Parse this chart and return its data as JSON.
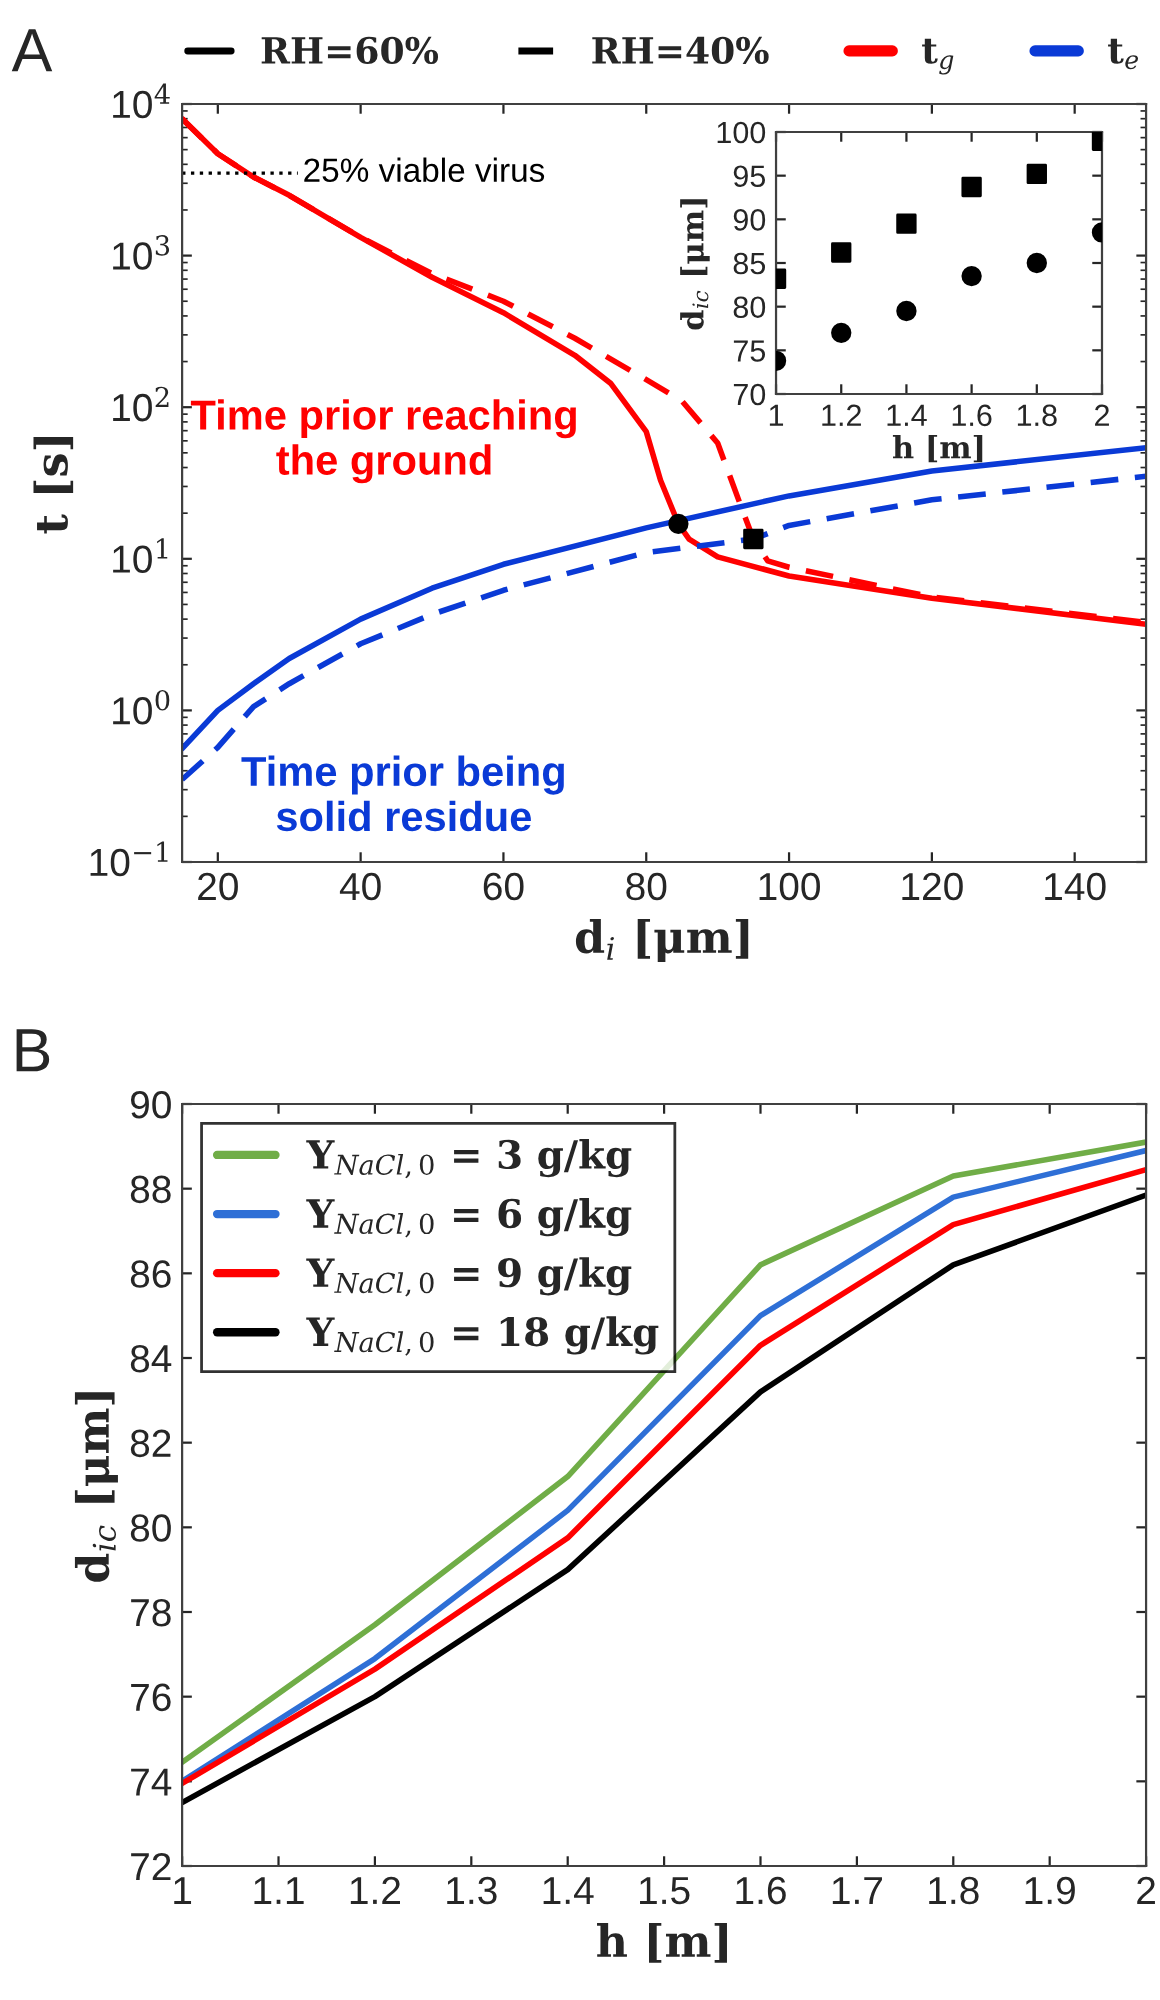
{
  "chart_data": [
    {
      "type": "line",
      "xlabel": "d$_{i}$ [μm]",
      "ylabel": "t [s]",
      "log": "y",
      "xlim": [
        15,
        150
      ],
      "xticks": [
        20,
        40,
        60,
        80,
        100,
        120,
        140
      ],
      "ylim": [
        0.1,
        10000
      ],
      "yticks": [
        {
          "value": 0.1,
          "label": "10$^{−1}$"
        },
        {
          "value": 1,
          "label": "10$^{0}$"
        },
        {
          "value": 10,
          "label": "10$^{1}$"
        },
        {
          "value": 100,
          "label": "10$^{2}$"
        },
        {
          "value": 1000,
          "label": "10$^{3}$"
        },
        {
          "value": 10000,
          "label": "10$^{4}$"
        }
      ],
      "legend": "top",
      "grid": false,
      "annotations": [
        "A",
        "RH=60%",
        "RH=40%",
        "Time prior reaching\nthe ground",
        "Time prior being\nsolid residue"
      ],
      "ref_lines": [
        {
          "axis": "y",
          "value": 3500,
          "label": "25% viable virus",
          "color": "#000000",
          "line_style": "dotted"
        }
      ],
      "series": [
        {
          "name": "t$_{g}$",
          "color": "#ff0000",
          "line_style": "solid",
          "x": [
            15,
            20,
            25,
            30,
            40,
            50,
            60,
            70,
            75,
            80,
            82,
            84.5,
            86,
            90,
            100,
            120,
            150
          ],
          "values": [
            8000,
            4700,
            3300,
            2500,
            1320,
            720,
            420,
            220,
            144,
            69,
            33,
            17,
            13.5,
            10.3,
            7.7,
            5.5,
            3.7
          ]
        },
        {
          "color": "#ff0000",
          "line_style": "dashed",
          "x": [
            15,
            20,
            25,
            30,
            40,
            50,
            60,
            70,
            80,
            85,
            90,
            93,
            95,
            97,
            100,
            120,
            150
          ],
          "values": [
            8000,
            4700,
            3300,
            2500,
            1320,
            760,
            500,
            285,
            152,
            110,
            58,
            24,
            13.5,
            9.7,
            8.8,
            5.6,
            3.8
          ]
        },
        {
          "name": "t$_{e}$",
          "color": "#0a3ad6",
          "line_style": "solid",
          "x": [
            15,
            20,
            25,
            30,
            40,
            50,
            60,
            80,
            100,
            120,
            150
          ],
          "values": [
            0.56,
            1.0,
            1.5,
            2.2,
            4.0,
            6.4,
            9.2,
            16,
            26,
            38,
            54
          ]
        },
        {
          "color": "#0a3ad6",
          "line_style": "dashed",
          "x": [
            15,
            20,
            25,
            30,
            40,
            50,
            60,
            80,
            95,
            100,
            120,
            150
          ],
          "values": [
            0.35,
            0.57,
            1.06,
            1.5,
            2.75,
            4.3,
            6.2,
            11,
            13.5,
            16.6,
            24.5,
            35
          ]
        },
        {
          "type": "scatter",
          "marker": "circle",
          "color": "#000000",
          "x": [
            84.5
          ],
          "values": [
            17
          ]
        },
        {
          "type": "scatter",
          "marker": "square",
          "color": "#000000",
          "x": [
            95
          ],
          "values": [
            13.5
          ]
        }
      ]
    },
    {
      "type": "scatter",
      "xlabel": "h [m]",
      "ylabel": "d$_{ic}$ [μm]",
      "xlim": [
        1,
        2
      ],
      "xticks": [
        1,
        1.2,
        1.4,
        1.6,
        1.8,
        2
      ],
      "ylim": [
        70,
        100
      ],
      "yticks": [
        70,
        75,
        80,
        85,
        90,
        95,
        100
      ],
      "grid": false,
      "series": [
        {
          "marker": "square",
          "color": "#000000",
          "x": [
            1,
            1.2,
            1.4,
            1.6,
            1.8,
            2
          ],
          "values": [
            83.2,
            86.2,
            89.5,
            93.7,
            95.2,
            99
          ]
        },
        {
          "marker": "circle",
          "color": "#000000",
          "x": [
            1,
            1.2,
            1.4,
            1.6,
            1.8,
            2
          ],
          "values": [
            73.8,
            77,
            79.5,
            83.5,
            85,
            88.5
          ]
        }
      ]
    },
    {
      "type": "line",
      "xlabel": "h [m]",
      "ylabel": "d$_{ic}$ [μm]",
      "xlim": [
        1,
        2
      ],
      "xticks": [
        1,
        1.1,
        1.2,
        1.3,
        1.4,
        1.5,
        1.6,
        1.7,
        1.8,
        1.9,
        2
      ],
      "ylim": [
        72,
        90
      ],
      "yticks": [
        72,
        74,
        76,
        78,
        80,
        82,
        84,
        86,
        88,
        90
      ],
      "grid": false,
      "legend": "top left",
      "annotations": [
        "B"
      ],
      "series": [
        {
          "name": "Y$_{NaCl,0}$ = 3 g/kg",
          "color": "#70ad47",
          "x": [
            1,
            1.2,
            1.4,
            1.6,
            1.8,
            2
          ],
          "values": [
            74.45,
            77.7,
            81.2,
            86.2,
            88.3,
            89.1
          ]
        },
        {
          "name": "Y$_{NaCl,0}$ = 6 g/kg",
          "color": "#2e6fd6",
          "x": [
            1,
            1.2,
            1.4,
            1.6,
            1.8,
            2
          ],
          "values": [
            74.0,
            76.9,
            80.4,
            85.0,
            87.8,
            88.9
          ]
        },
        {
          "name": "Y$_{NaCl,0}$ = 9 g/kg",
          "color": "#ff0000",
          "x": [
            1,
            1.2,
            1.4,
            1.6,
            1.8,
            2
          ],
          "values": [
            73.95,
            76.65,
            79.75,
            84.3,
            87.15,
            88.45
          ]
        },
        {
          "name": "Y$_{NaCl,0}$ = 18 g/kg",
          "color": "#000000",
          "x": [
            1,
            1.2,
            1.4,
            1.6,
            1.8,
            2
          ],
          "values": [
            73.5,
            76.0,
            79.0,
            83.2,
            86.2,
            87.85
          ]
        }
      ]
    }
  ]
}
